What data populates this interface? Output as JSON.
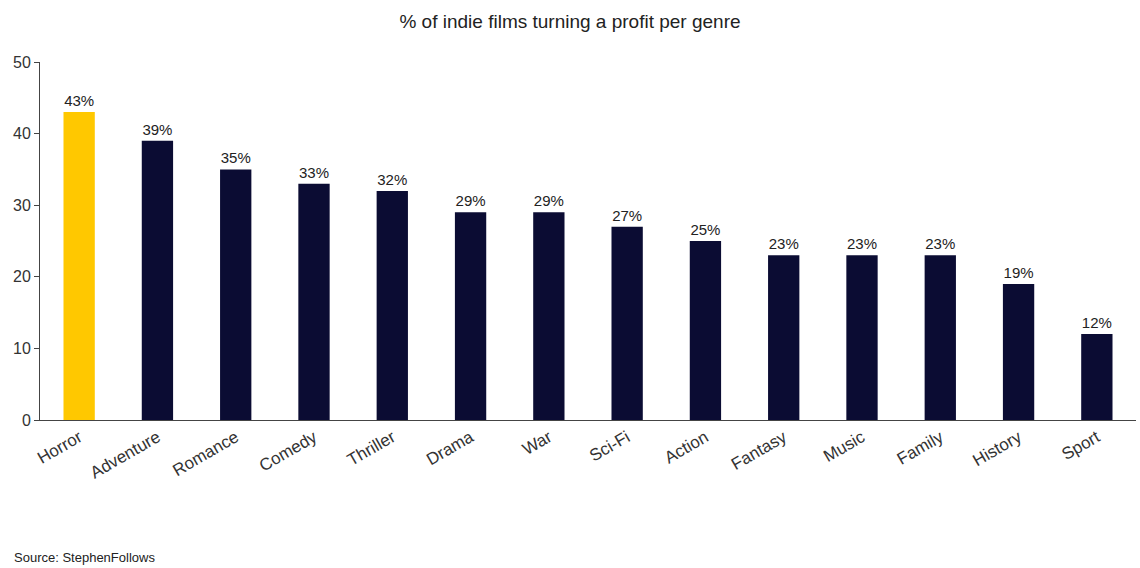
{
  "chart_data": {
    "type": "bar",
    "title": "% of indie films turning a profit per genre",
    "categories": [
      "Horror",
      "Adventure",
      "Romance",
      "Comedy",
      "Thriller",
      "Drama",
      "War",
      "Sci-Fi",
      "Action",
      "Fantasy",
      "Music",
      "Family",
      "History",
      "Sport"
    ],
    "values": [
      43,
      39,
      35,
      33,
      32,
      29,
      29,
      27,
      25,
      23,
      23,
      23,
      19,
      12
    ],
    "value_labels": [
      "43%",
      "39%",
      "35%",
      "33%",
      "32%",
      "29%",
      "29%",
      "27%",
      "25%",
      "23%",
      "23%",
      "23%",
      "19%",
      "12%"
    ],
    "colors": [
      "#ffc800",
      "#0b0c33",
      "#0b0c33",
      "#0b0c33",
      "#0b0c33",
      "#0b0c33",
      "#0b0c33",
      "#0b0c33",
      "#0b0c33",
      "#0b0c33",
      "#0b0c33",
      "#0b0c33",
      "#0b0c33",
      "#0b0c33"
    ],
    "ylim": [
      0,
      50
    ],
    "yticks": [
      0,
      10,
      20,
      30,
      40,
      50
    ],
    "grid": false,
    "data_labels": true,
    "annotations": [
      "Source: StephenFollows"
    ]
  }
}
